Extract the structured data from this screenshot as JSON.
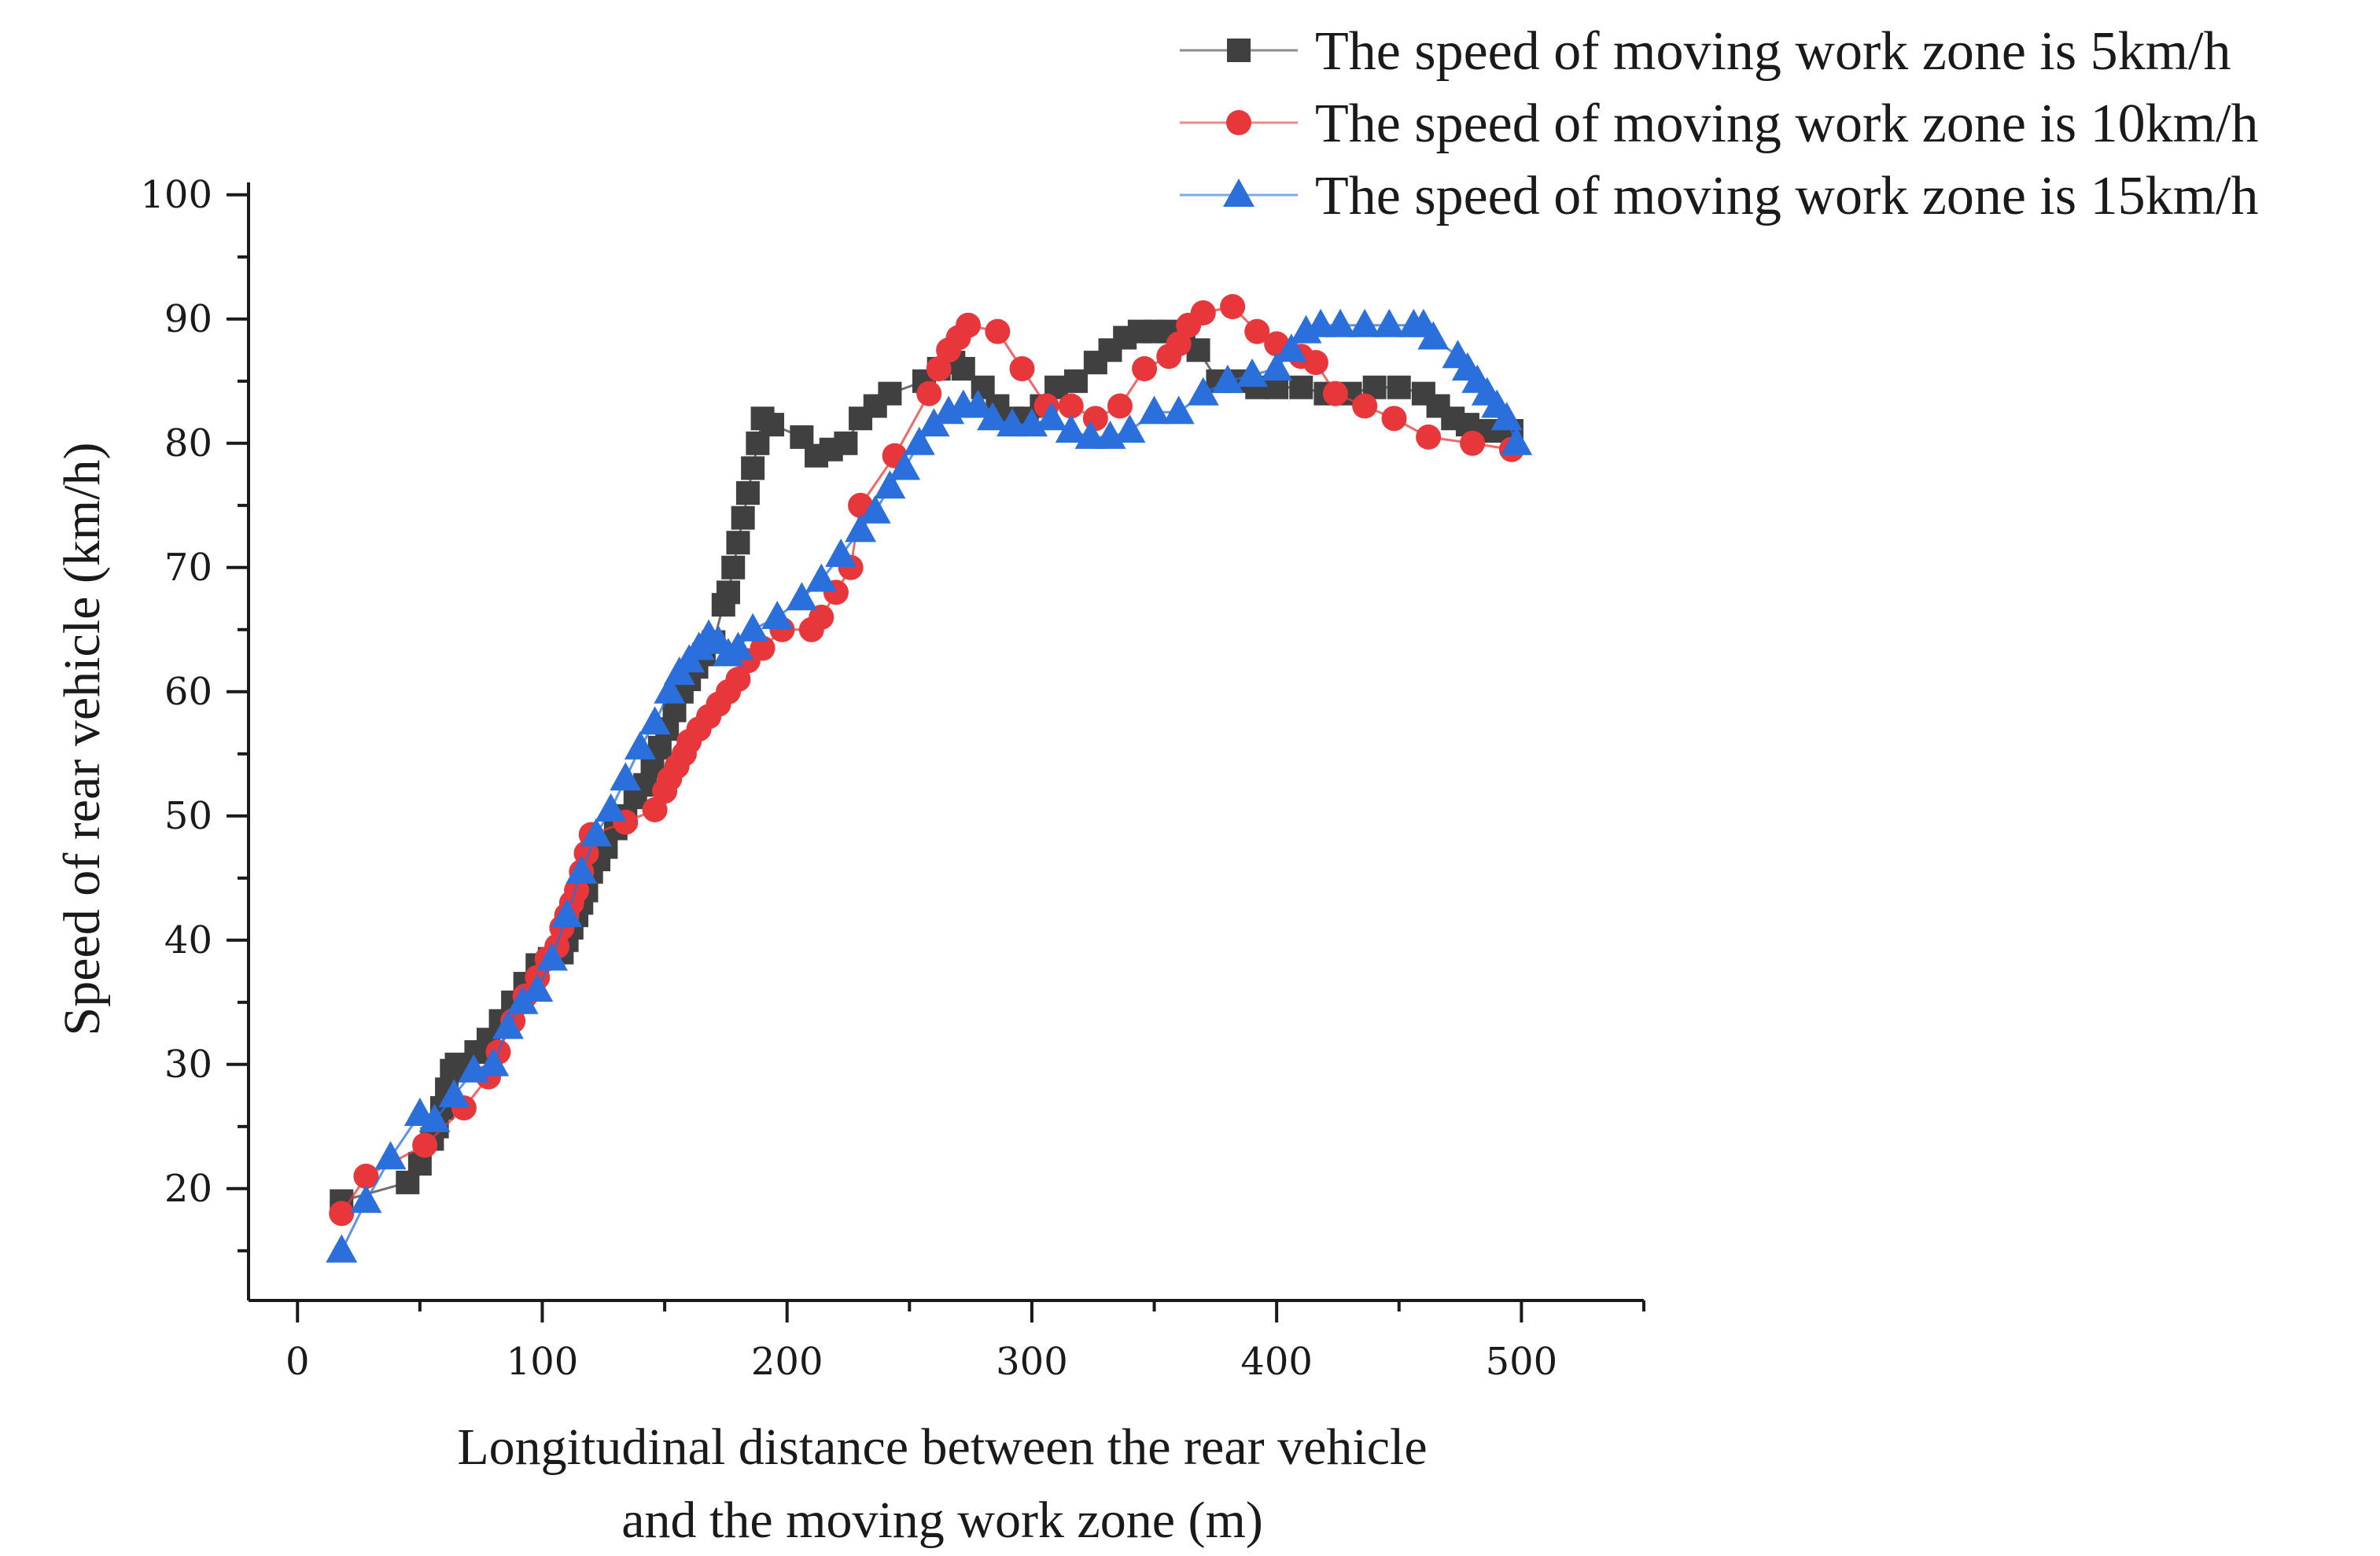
{
  "chart_data": {
    "type": "line",
    "title": "",
    "xlabel_lines": [
      "Longitudinal distance between the rear vehicle",
      "and the moving work zone (m)"
    ],
    "ylabel": "Speed of rear vehicle (km/h)",
    "xlim": [
      -20,
      550
    ],
    "ylim": [
      11,
      101
    ],
    "x_ticks": [
      0,
      100,
      200,
      300,
      400,
      500
    ],
    "y_ticks": [
      20,
      30,
      40,
      50,
      60,
      70,
      80,
      90,
      100
    ],
    "grid": false,
    "legend_position": "top-right",
    "series": [
      {
        "name": "The speed of moving work zone is 5km/h",
        "color": "#404040",
        "marker": "square",
        "x": [
          18,
          45,
          50,
          55,
          57,
          59,
          61,
          63,
          65,
          73,
          78,
          83,
          88,
          93,
          98,
          103,
          108,
          110,
          112,
          114,
          116,
          118,
          120,
          123,
          126,
          130,
          134,
          138,
          142,
          145,
          148,
          151,
          154,
          157,
          160,
          163,
          166,
          170,
          174,
          176,
          178,
          180,
          182,
          184,
          186,
          188,
          190,
          194,
          206,
          212,
          218,
          224,
          230,
          236,
          242,
          256,
          262,
          268,
          272,
          280,
          286,
          292,
          298,
          304,
          310,
          318,
          326,
          332,
          338,
          344,
          350,
          356,
          362,
          368,
          376,
          384,
          392,
          400,
          410,
          420,
          430,
          440,
          450,
          460,
          466,
          472,
          478,
          484,
          490,
          496
        ],
        "y": [
          19,
          20.5,
          22,
          24,
          25,
          26.5,
          28,
          29.5,
          30,
          31,
          32,
          33.5,
          35,
          36.5,
          38,
          38.5,
          39,
          40,
          41,
          42,
          43,
          44,
          45.5,
          46.5,
          47.5,
          49,
          50,
          51.5,
          52.5,
          54,
          55.5,
          57,
          58.5,
          60,
          61,
          62,
          63,
          64,
          67,
          68,
          70,
          72,
          74,
          76,
          78,
          80,
          82,
          81.5,
          80.5,
          79,
          79.5,
          80,
          82,
          83,
          84,
          85,
          86,
          86.5,
          86,
          84.5,
          83,
          82,
          82,
          83,
          84.5,
          85,
          86.5,
          87.5,
          88.5,
          89,
          89,
          89,
          88.5,
          87.5,
          85,
          85,
          84.5,
          84.5,
          84.5,
          84,
          84,
          84.5,
          84.5,
          84,
          83,
          82,
          81.5,
          81,
          81,
          81
        ]
      },
      {
        "name": "The speed of moving work zone is 10km/h",
        "color": "#e8373a",
        "marker": "circle",
        "x": [
          18,
          28,
          52,
          68,
          78,
          82,
          88,
          93,
          98,
          102,
          106,
          108,
          110,
          112,
          114,
          116,
          118,
          120,
          134,
          146,
          150,
          152,
          155,
          158,
          160,
          164,
          168,
          172,
          176,
          180,
          184,
          190,
          198,
          210,
          214,
          220,
          226,
          230,
          244,
          258,
          262,
          266,
          270,
          274,
          286,
          296,
          306,
          316,
          326,
          336,
          346,
          356,
          360,
          364,
          370,
          382,
          392,
          400,
          410,
          416,
          424,
          436,
          448,
          462,
          480,
          496
        ],
        "y": [
          18,
          21,
          23.5,
          26.5,
          29,
          31,
          33.5,
          35.5,
          37,
          38.5,
          39.5,
          41,
          42,
          43,
          44,
          45.5,
          47,
          48.5,
          49.5,
          50.5,
          52,
          53,
          54,
          55,
          56,
          57,
          58,
          59,
          60,
          61,
          62.5,
          63.5,
          65,
          65,
          66,
          68,
          70,
          75,
          79,
          84,
          86,
          87.5,
          88.5,
          89.5,
          89,
          86,
          83,
          83,
          82,
          83,
          86,
          87,
          88,
          89.5,
          90.5,
          91,
          89,
          88,
          87,
          86.5,
          84,
          83,
          82,
          80.5,
          80,
          79.5
        ]
      },
      {
        "name": "The speed of moving work zone is 15km/h",
        "color": "#2a6fdb",
        "marker": "triangle",
        "x": [
          18,
          28,
          38,
          50,
          56,
          64,
          72,
          80,
          86,
          92,
          98,
          104,
          110,
          116,
          122,
          128,
          134,
          140,
          146,
          152,
          156,
          160,
          164,
          168,
          172,
          176,
          180,
          186,
          196,
          206,
          214,
          222,
          230,
          236,
          242,
          248,
          254,
          260,
          266,
          272,
          278,
          284,
          292,
          300,
          308,
          316,
          324,
          332,
          340,
          350,
          360,
          370,
          380,
          390,
          400,
          406,
          412,
          418,
          426,
          436,
          446,
          456,
          460,
          464,
          474,
          478,
          482,
          486,
          490,
          494,
          498
        ],
        "y": [
          15,
          19,
          22.5,
          26,
          25.5,
          27.5,
          29.5,
          30,
          33,
          35,
          36,
          38.5,
          42,
          45.5,
          48.5,
          50.5,
          53,
          55.5,
          57.5,
          60,
          61.5,
          62.5,
          63.5,
          64.5,
          64,
          63,
          63.5,
          65,
          66,
          67.5,
          69,
          71,
          73,
          74.5,
          76.5,
          78,
          80,
          81.5,
          82.5,
          83,
          83,
          82,
          81.5,
          81.5,
          82,
          81,
          80.5,
          80.5,
          81,
          82.5,
          82.5,
          84,
          85,
          85.5,
          86,
          87.5,
          89,
          89.5,
          89.5,
          89.5,
          89.5,
          89.5,
          89.5,
          88.5,
          87,
          86,
          85,
          84,
          83,
          82,
          80
        ]
      }
    ]
  }
}
